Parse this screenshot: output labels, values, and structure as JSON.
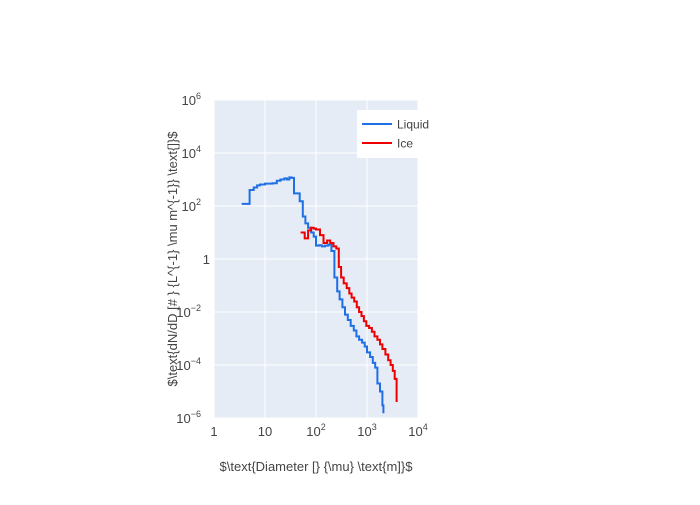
{
  "chart_data": {
    "type": "line",
    "line_shape": "step",
    "x_scale": "log",
    "y_scale": "log",
    "xlim": [
      1,
      10000
    ],
    "ylim": [
      1e-06,
      1000000
    ],
    "x_ticks": [
      {
        "value": 1,
        "base": "1",
        "exp": ""
      },
      {
        "value": 10,
        "base": "10",
        "exp": ""
      },
      {
        "value": 100,
        "base": "10",
        "exp": "2"
      },
      {
        "value": 1000,
        "base": "10",
        "exp": "3"
      },
      {
        "value": 10000,
        "base": "10",
        "exp": "4"
      }
    ],
    "y_ticks": [
      {
        "value": 1e-06,
        "base": "10",
        "exp": "−6"
      },
      {
        "value": 0.0001,
        "base": "10",
        "exp": "−4"
      },
      {
        "value": 0.01,
        "base": "10",
        "exp": "−2"
      },
      {
        "value": 1,
        "base": "1",
        "exp": ""
      },
      {
        "value": 100,
        "base": "10",
        "exp": "2"
      },
      {
        "value": 10000,
        "base": "10",
        "exp": "4"
      },
      {
        "value": 1000000,
        "base": "10",
        "exp": "6"
      }
    ],
    "xlabel": "$\\text{Diameter [} {\\mu} \\text{m]}$",
    "ylabel": "$\\text{dN/dD [# } {L^{-1} \\mu m^{-1}} \\text{]}$",
    "grid": true,
    "legend_position": "top-right",
    "colors": {
      "plot_bg": "#e5ecf6",
      "grid": "#ffffff",
      "text": "#444444"
    },
    "series": [
      {
        "name": "Liquid",
        "color": "#1f6fe5",
        "x": [
          3.5,
          4.5,
          5,
          6,
          7,
          8,
          10,
          14,
          17,
          20,
          24,
          27,
          30,
          33,
          37,
          42,
          48,
          55,
          62,
          70,
          80,
          90,
          100,
          115,
          130,
          150,
          175,
          200,
          230,
          260,
          290,
          330,
          370,
          420,
          480,
          550,
          620,
          700,
          800,
          900,
          1000,
          1150,
          1300,
          1450,
          1600,
          1800,
          2000,
          2100
        ],
        "y": [
          120,
          120,
          400,
          500,
          600,
          650,
          700,
          720,
          900,
          1000,
          1100,
          1000,
          1200,
          1150,
          300,
          300,
          150,
          40,
          22,
          15,
          10,
          7,
          3.2,
          3.3,
          3.0,
          3.2,
          3.5,
          2.0,
          0.2,
          0.06,
          0.03,
          0.015,
          0.008,
          0.005,
          0.003,
          0.002,
          0.0012,
          0.0009,
          0.0007,
          0.0005,
          0.0003,
          0.0002,
          0.00012,
          8e-05,
          2e-05,
          1e-05,
          3e-06,
          1.5e-06
        ]
      },
      {
        "name": "Ice",
        "color": "#ee0000",
        "x": [
          50,
          60,
          70,
          80,
          90,
          100,
          120,
          140,
          165,
          190,
          220,
          250,
          280,
          310,
          350,
          400,
          450,
          500,
          560,
          630,
          700,
          780,
          870,
          970,
          1100,
          1250,
          1400,
          1600,
          1800,
          2000,
          2300,
          2600,
          2900,
          3200,
          3500,
          3800
        ],
        "y": [
          10,
          6,
          12,
          15,
          14,
          13,
          8,
          4,
          5,
          4,
          3,
          2.5,
          0.5,
          0.2,
          0.12,
          0.08,
          0.05,
          0.035,
          0.025,
          0.015,
          0.01,
          0.007,
          0.0045,
          0.003,
          0.0025,
          0.0018,
          0.0012,
          0.0009,
          0.0006,
          0.0004,
          0.00025,
          0.00015,
          0.0001,
          6e-05,
          3e-05,
          4e-06
        ]
      }
    ]
  }
}
